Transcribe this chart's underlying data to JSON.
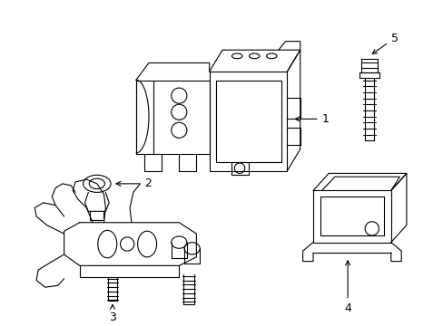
{
  "background_color": "#ffffff",
  "line_color": "#000000",
  "line_width": 0.8,
  "label_fontsize": 9
}
